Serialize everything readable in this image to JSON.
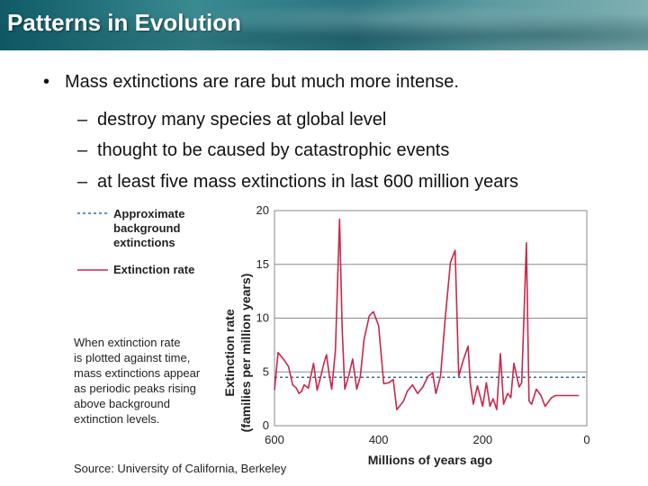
{
  "header": {
    "title": "Patterns in Evolution"
  },
  "content": {
    "bullet": "Mass extinctions are rare but much more intense.",
    "subs": [
      "destroy many species at global level",
      "thought to be caused by catastrophic events",
      "at least five mass extinctions in last 600 million years"
    ]
  },
  "figure": {
    "legend_background_line1": "Approximate",
    "legend_background_line2": "background",
    "legend_background_line3": "extinctions",
    "legend_rate": "Extinction rate",
    "note_lines": [
      "When extinction rate",
      "is plotted against time,",
      "mass extinctions appear",
      "as periodic peaks rising",
      "above background",
      "extinction levels."
    ],
    "source": "Source: University of California, Berkeley",
    "colors": {
      "rate": "#c8284a",
      "background": "#2a6fa8",
      "grid": "#8a8a8a"
    }
  },
  "chart_data": {
    "type": "line",
    "xlabel": "Millions of years ago",
    "ylabel_line1": "Extinction rate",
    "ylabel_line2": "(families per million years)",
    "xlim": [
      600,
      0
    ],
    "ylim": [
      0,
      20
    ],
    "xticks": [
      600,
      400,
      200,
      0
    ],
    "yticks": [
      0,
      5,
      10,
      15,
      20
    ],
    "background_level": 4.5,
    "series": [
      {
        "x": [
          600,
          593,
          580,
          573,
          565,
          558,
          553,
          548,
          543,
          535,
          525,
          518,
          510,
          505,
          500,
          495,
          490,
          483,
          475,
          470,
          465,
          458,
          450,
          442,
          435,
          428,
          418,
          410,
          400,
          390,
          380,
          372,
          365,
          360,
          352,
          345,
          335,
          325,
          315,
          305,
          296,
          290,
          281,
          272,
          262,
          253,
          246,
          238,
          228,
          224,
          218,
          210,
          200,
          193,
          186,
          180,
          173,
          166,
          160,
          152,
          146,
          140,
          130,
          125,
          116,
          111,
          106,
          97,
          88,
          80,
          68,
          60,
          52,
          43,
          33,
          25,
          15
        ],
        "values": [
          3.3,
          6.8,
          6.0,
          5.5,
          3.8,
          3.5,
          3.0,
          3.2,
          3.8,
          3.5,
          5.8,
          3.3,
          4.8,
          5.8,
          6.6,
          4.8,
          3.4,
          7.0,
          19.2,
          9.0,
          3.4,
          4.5,
          6.2,
          3.4,
          4.6,
          8.0,
          10.2,
          10.6,
          9.3,
          3.9,
          4.0,
          4.3,
          1.5,
          1.8,
          2.3,
          3.2,
          3.8,
          3.0,
          3.6,
          4.6,
          4.9,
          3.0,
          4.6,
          10.0,
          15.2,
          16.3,
          4.6,
          6.0,
          7.4,
          4.0,
          2.0,
          3.7,
          1.8,
          4.0,
          1.8,
          2.5,
          1.5,
          6.7,
          2.0,
          3.0,
          2.6,
          5.8,
          3.6,
          4.0,
          17.0,
          2.3,
          2.0,
          3.4,
          2.8,
          1.8,
          2.6,
          2.8,
          2.8,
          2.8,
          2.8,
          2.8,
          2.8
        ]
      }
    ]
  }
}
